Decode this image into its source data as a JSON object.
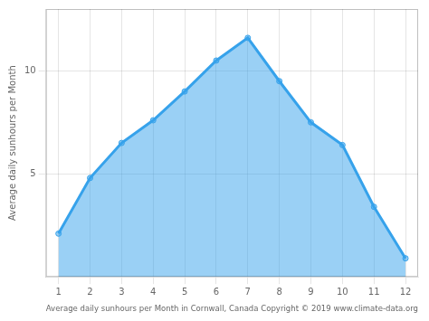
{
  "chart_data": {
    "type": "area",
    "x": [
      1,
      2,
      3,
      4,
      5,
      6,
      7,
      8,
      9,
      10,
      11,
      12
    ],
    "values": [
      2.1,
      4.8,
      6.5,
      7.6,
      9.0,
      10.5,
      11.6,
      9.5,
      7.5,
      6.4,
      3.4,
      0.9
    ],
    "marker": "circle",
    "xlabel": "Average daily sunhours per Month in Cornwall, Canada Copyright © 2019 www.climate-data.org",
    "ylabel": "Average daily sunhours per Month",
    "xlim": [
      0.6,
      12.4
    ],
    "xticks": [
      1,
      2,
      3,
      4,
      5,
      6,
      7,
      8,
      9,
      10,
      11,
      12
    ],
    "ylim": [
      0,
      13
    ],
    "yticks": [
      5,
      10
    ],
    "grid": true
  }
}
